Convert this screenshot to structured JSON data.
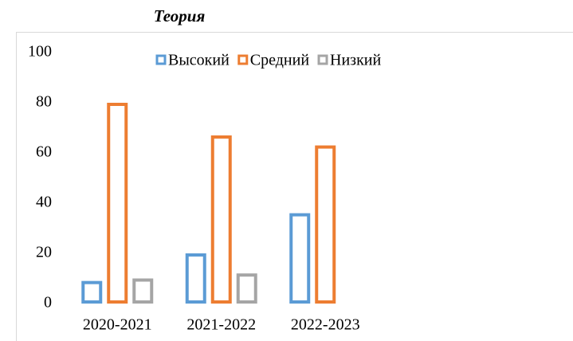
{
  "chart_data": {
    "type": "bar",
    "title": "Теория",
    "categories": [
      "2020-2021",
      "2021-2022",
      "2022-2023"
    ],
    "series": [
      {
        "name": "Высокий",
        "color": "#5b9bd5",
        "values": [
          9,
          20,
          36
        ]
      },
      {
        "name": "Средний",
        "color": "#ed7d31",
        "values": [
          80,
          67,
          63
        ]
      },
      {
        "name": "Низкий",
        "color": "#a5a5a5",
        "values": [
          10,
          12,
          null
        ]
      }
    ],
    "ylim": [
      0,
      100
    ],
    "yticks": [
      0,
      20,
      40,
      60,
      80,
      100
    ],
    "grid": false,
    "legend": "top"
  }
}
